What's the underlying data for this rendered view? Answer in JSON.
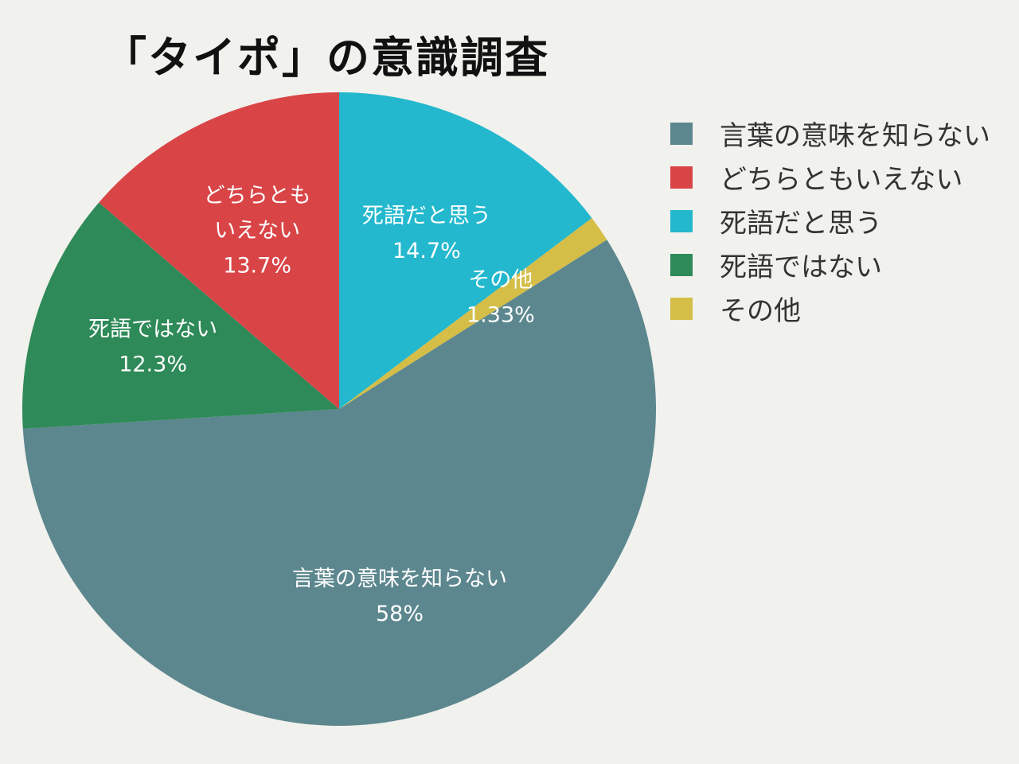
{
  "title": "「タイポ」の意識調査",
  "chart_data": {
    "type": "pie",
    "title": "「タイポ」の意識調査",
    "start_angle_deg": 0,
    "direction": "clockwise",
    "legend_position": "right",
    "slices": [
      {
        "name": "死語だと思う",
        "value": 14.7,
        "label_lines": [
          "死語だと思う",
          "14.7%"
        ],
        "color": "#23b8ce"
      },
      {
        "name": "その他",
        "value": 1.33,
        "label_lines": [
          "その他",
          "1.33%"
        ],
        "color": "#d4be48"
      },
      {
        "name": "言葉の意味を知らない",
        "value": 58,
        "label_lines": [
          "言葉の意味を知らない",
          "58%"
        ],
        "color": "#5c878e"
      },
      {
        "name": "死語ではない",
        "value": 12.3,
        "label_lines": [
          "死語ではない",
          "12.3%"
        ],
        "color": "#2e8a58"
      },
      {
        "name": "どちらともいえない",
        "value": 13.7,
        "label_lines": [
          "どちらとも",
          "いえない",
          "13.7%"
        ],
        "color": "#d94547"
      }
    ],
    "legend": [
      {
        "label": "言葉の意味を知らない",
        "color": "#5c878e"
      },
      {
        "label": "どちらともいえない",
        "color": "#d94547"
      },
      {
        "label": "死語だと思う",
        "color": "#23b8ce"
      },
      {
        "label": "死語ではない",
        "color": "#2e8a58"
      },
      {
        "label": "その他",
        "color": "#d4be48"
      }
    ]
  }
}
